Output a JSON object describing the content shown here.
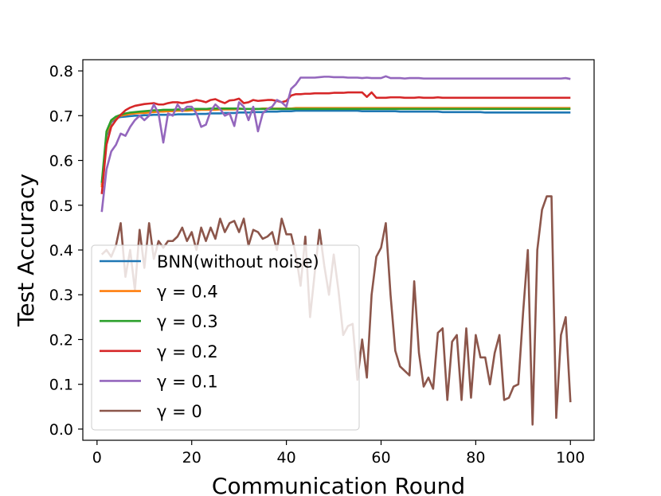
{
  "chart_data": {
    "type": "line",
    "xlabel": "Communication Round",
    "ylabel": "Test Accuracy",
    "xlim": [
      -3,
      105
    ],
    "ylim": [
      -0.025,
      0.825
    ],
    "xticks": [
      0,
      20,
      40,
      60,
      80,
      100
    ],
    "yticks": [
      0.0,
      0.1,
      0.2,
      0.3,
      0.4,
      0.5,
      0.6,
      0.7,
      0.8
    ],
    "xtick_labels": [
      "0",
      "20",
      "40",
      "60",
      "80",
      "100"
    ],
    "ytick_labels": [
      "0.0",
      "0.1",
      "0.2",
      "0.3",
      "0.4",
      "0.5",
      "0.6",
      "0.7",
      "0.8"
    ],
    "grid": false,
    "legend_position": "lower-left",
    "x": [
      1,
      2,
      3,
      4,
      5,
      6,
      7,
      8,
      9,
      10,
      11,
      12,
      13,
      14,
      15,
      16,
      17,
      18,
      19,
      20,
      21,
      22,
      23,
      24,
      25,
      26,
      27,
      28,
      29,
      30,
      31,
      32,
      33,
      34,
      35,
      36,
      37,
      38,
      39,
      40,
      41,
      42,
      43,
      44,
      45,
      46,
      47,
      48,
      49,
      50,
      51,
      52,
      53,
      54,
      55,
      56,
      57,
      58,
      59,
      60,
      61,
      62,
      63,
      64,
      65,
      66,
      67,
      68,
      69,
      70,
      71,
      72,
      73,
      74,
      75,
      76,
      77,
      78,
      79,
      80,
      81,
      82,
      83,
      84,
      85,
      86,
      87,
      88,
      89,
      90,
      91,
      92,
      93,
      94,
      95,
      96,
      97,
      98,
      99,
      100
    ],
    "series": [
      {
        "name": "BNN(without noise)",
        "color": "#1f77b4",
        "values": [
          0.545,
          0.655,
          0.685,
          0.695,
          0.697,
          0.698,
          0.699,
          0.7,
          0.7,
          0.701,
          0.701,
          0.702,
          0.702,
          0.702,
          0.702,
          0.702,
          0.703,
          0.703,
          0.703,
          0.703,
          0.704,
          0.704,
          0.704,
          0.705,
          0.705,
          0.705,
          0.706,
          0.706,
          0.706,
          0.707,
          0.707,
          0.707,
          0.708,
          0.708,
          0.708,
          0.709,
          0.709,
          0.709,
          0.71,
          0.71,
          0.71,
          0.711,
          0.711,
          0.711,
          0.711,
          0.711,
          0.711,
          0.711,
          0.711,
          0.711,
          0.711,
          0.711,
          0.711,
          0.711,
          0.711,
          0.71,
          0.71,
          0.71,
          0.71,
          0.71,
          0.71,
          0.71,
          0.71,
          0.709,
          0.709,
          0.709,
          0.709,
          0.709,
          0.709,
          0.709,
          0.709,
          0.709,
          0.708,
          0.708,
          0.708,
          0.708,
          0.708,
          0.708,
          0.708,
          0.708,
          0.708,
          0.707,
          0.707,
          0.707,
          0.707,
          0.707,
          0.707,
          0.707,
          0.707,
          0.707,
          0.707,
          0.707,
          0.707,
          0.707,
          0.707,
          0.707,
          0.707,
          0.707,
          0.707,
          0.707
        ]
      },
      {
        "name": "γ = 0.4",
        "color": "#ff7f0e",
        "values": [
          0.54,
          0.66,
          0.688,
          0.697,
          0.7,
          0.702,
          0.704,
          0.705,
          0.706,
          0.706,
          0.707,
          0.708,
          0.709,
          0.709,
          0.71,
          0.71,
          0.711,
          0.711,
          0.711,
          0.712,
          0.712,
          0.713,
          0.713,
          0.713,
          0.713,
          0.714,
          0.714,
          0.714,
          0.714,
          0.715,
          0.715,
          0.715,
          0.715,
          0.715,
          0.716,
          0.716,
          0.716,
          0.716,
          0.716,
          0.716,
          0.716,
          0.717,
          0.717,
          0.717,
          0.717,
          0.717,
          0.717,
          0.717,
          0.717,
          0.717,
          0.717,
          0.717,
          0.717,
          0.717,
          0.717,
          0.717,
          0.717,
          0.717,
          0.717,
          0.717,
          0.717,
          0.717,
          0.717,
          0.717,
          0.717,
          0.717,
          0.717,
          0.717,
          0.717,
          0.717,
          0.717,
          0.717,
          0.717,
          0.717,
          0.717,
          0.717,
          0.717,
          0.717,
          0.717,
          0.717,
          0.717,
          0.717,
          0.717,
          0.717,
          0.717,
          0.717,
          0.717,
          0.717,
          0.717,
          0.717,
          0.717,
          0.717,
          0.717,
          0.717,
          0.717,
          0.717,
          0.717,
          0.717,
          0.717,
          0.717
        ]
      },
      {
        "name": "γ = 0.3",
        "color": "#2ca02c",
        "values": [
          0.55,
          0.665,
          0.69,
          0.698,
          0.702,
          0.705,
          0.707,
          0.708,
          0.709,
          0.71,
          0.711,
          0.712,
          0.712,
          0.713,
          0.713,
          0.713,
          0.714,
          0.714,
          0.714,
          0.715,
          0.715,
          0.715,
          0.715,
          0.716,
          0.716,
          0.716,
          0.716,
          0.716,
          0.716,
          0.716,
          0.715,
          0.715,
          0.715,
          0.715,
          0.715,
          0.715,
          0.715,
          0.715,
          0.715,
          0.715,
          0.715,
          0.715,
          0.715,
          0.715,
          0.715,
          0.715,
          0.715,
          0.715,
          0.715,
          0.715,
          0.715,
          0.715,
          0.715,
          0.715,
          0.715,
          0.715,
          0.715,
          0.715,
          0.715,
          0.715,
          0.715,
          0.715,
          0.715,
          0.715,
          0.715,
          0.715,
          0.715,
          0.715,
          0.715,
          0.715,
          0.715,
          0.715,
          0.715,
          0.715,
          0.715,
          0.715,
          0.715,
          0.715,
          0.715,
          0.715,
          0.715,
          0.715,
          0.715,
          0.715,
          0.715,
          0.715,
          0.715,
          0.715,
          0.715,
          0.715,
          0.715,
          0.715,
          0.715,
          0.715,
          0.715,
          0.715,
          0.715,
          0.715,
          0.715,
          0.715
        ]
      },
      {
        "name": "γ = 0.2",
        "color": "#d62728",
        "values": [
          0.525,
          0.635,
          0.675,
          0.69,
          0.702,
          0.712,
          0.718,
          0.722,
          0.724,
          0.726,
          0.727,
          0.728,
          0.725,
          0.725,
          0.728,
          0.73,
          0.73,
          0.728,
          0.73,
          0.732,
          0.735,
          0.733,
          0.73,
          0.735,
          0.737,
          0.732,
          0.728,
          0.734,
          0.735,
          0.738,
          0.728,
          0.73,
          0.735,
          0.733,
          0.734,
          0.735,
          0.735,
          0.733,
          0.73,
          0.733,
          0.745,
          0.748,
          0.748,
          0.749,
          0.749,
          0.75,
          0.75,
          0.75,
          0.75,
          0.751,
          0.751,
          0.751,
          0.752,
          0.752,
          0.752,
          0.752,
          0.742,
          0.752,
          0.74,
          0.74,
          0.74,
          0.741,
          0.741,
          0.741,
          0.74,
          0.74,
          0.74,
          0.741,
          0.74,
          0.74,
          0.74,
          0.741,
          0.74,
          0.74,
          0.74,
          0.74,
          0.74,
          0.74,
          0.74,
          0.74,
          0.74,
          0.74,
          0.74,
          0.74,
          0.74,
          0.74,
          0.74,
          0.74,
          0.74,
          0.74,
          0.74,
          0.74,
          0.74,
          0.74,
          0.74,
          0.74,
          0.74,
          0.74,
          0.74,
          0.74
        ]
      },
      {
        "name": "γ = 0.1",
        "color": "#9467bd",
        "values": [
          0.485,
          0.58,
          0.62,
          0.635,
          0.66,
          0.655,
          0.675,
          0.69,
          0.7,
          0.69,
          0.7,
          0.725,
          0.705,
          0.64,
          0.705,
          0.7,
          0.725,
          0.71,
          0.72,
          0.72,
          0.705,
          0.675,
          0.68,
          0.71,
          0.725,
          0.715,
          0.7,
          0.705,
          0.677,
          0.73,
          0.72,
          0.69,
          0.72,
          0.665,
          0.705,
          0.715,
          0.72,
          0.735,
          0.73,
          0.72,
          0.76,
          0.77,
          0.785,
          0.785,
          0.785,
          0.785,
          0.786,
          0.787,
          0.787,
          0.786,
          0.786,
          0.786,
          0.785,
          0.785,
          0.785,
          0.784,
          0.785,
          0.784,
          0.784,
          0.784,
          0.788,
          0.784,
          0.784,
          0.784,
          0.783,
          0.784,
          0.784,
          0.784,
          0.783,
          0.783,
          0.783,
          0.783,
          0.783,
          0.783,
          0.783,
          0.783,
          0.783,
          0.783,
          0.783,
          0.783,
          0.783,
          0.783,
          0.783,
          0.783,
          0.783,
          0.783,
          0.783,
          0.783,
          0.783,
          0.783,
          0.783,
          0.783,
          0.783,
          0.783,
          0.783,
          0.783,
          0.783,
          0.783,
          0.784,
          0.782
        ]
      },
      {
        "name": "γ = 0",
        "color": "#8c564b",
        "values": [
          0.39,
          0.4,
          0.385,
          0.41,
          0.46,
          0.34,
          0.4,
          0.31,
          0.445,
          0.36,
          0.46,
          0.38,
          0.42,
          0.405,
          0.42,
          0.42,
          0.43,
          0.45,
          0.42,
          0.44,
          0.4,
          0.45,
          0.42,
          0.45,
          0.425,
          0.47,
          0.44,
          0.46,
          0.465,
          0.44,
          0.47,
          0.41,
          0.445,
          0.44,
          0.425,
          0.43,
          0.44,
          0.4,
          0.47,
          0.435,
          0.435,
          0.39,
          0.32,
          0.43,
          0.25,
          0.35,
          0.445,
          0.365,
          0.3,
          0.39,
          0.31,
          0.21,
          0.23,
          0.235,
          0.11,
          0.2,
          0.115,
          0.3,
          0.385,
          0.405,
          0.46,
          0.3,
          0.175,
          0.14,
          0.13,
          0.12,
          0.33,
          0.17,
          0.095,
          0.115,
          0.09,
          0.215,
          0.225,
          0.065,
          0.195,
          0.21,
          0.065,
          0.225,
          0.07,
          0.21,
          0.16,
          0.16,
          0.1,
          0.17,
          0.21,
          0.065,
          0.07,
          0.095,
          0.1,
          0.26,
          0.4,
          0.01,
          0.4,
          0.49,
          0.52,
          0.52,
          0.025,
          0.21,
          0.25,
          0.06
        ]
      }
    ]
  }
}
